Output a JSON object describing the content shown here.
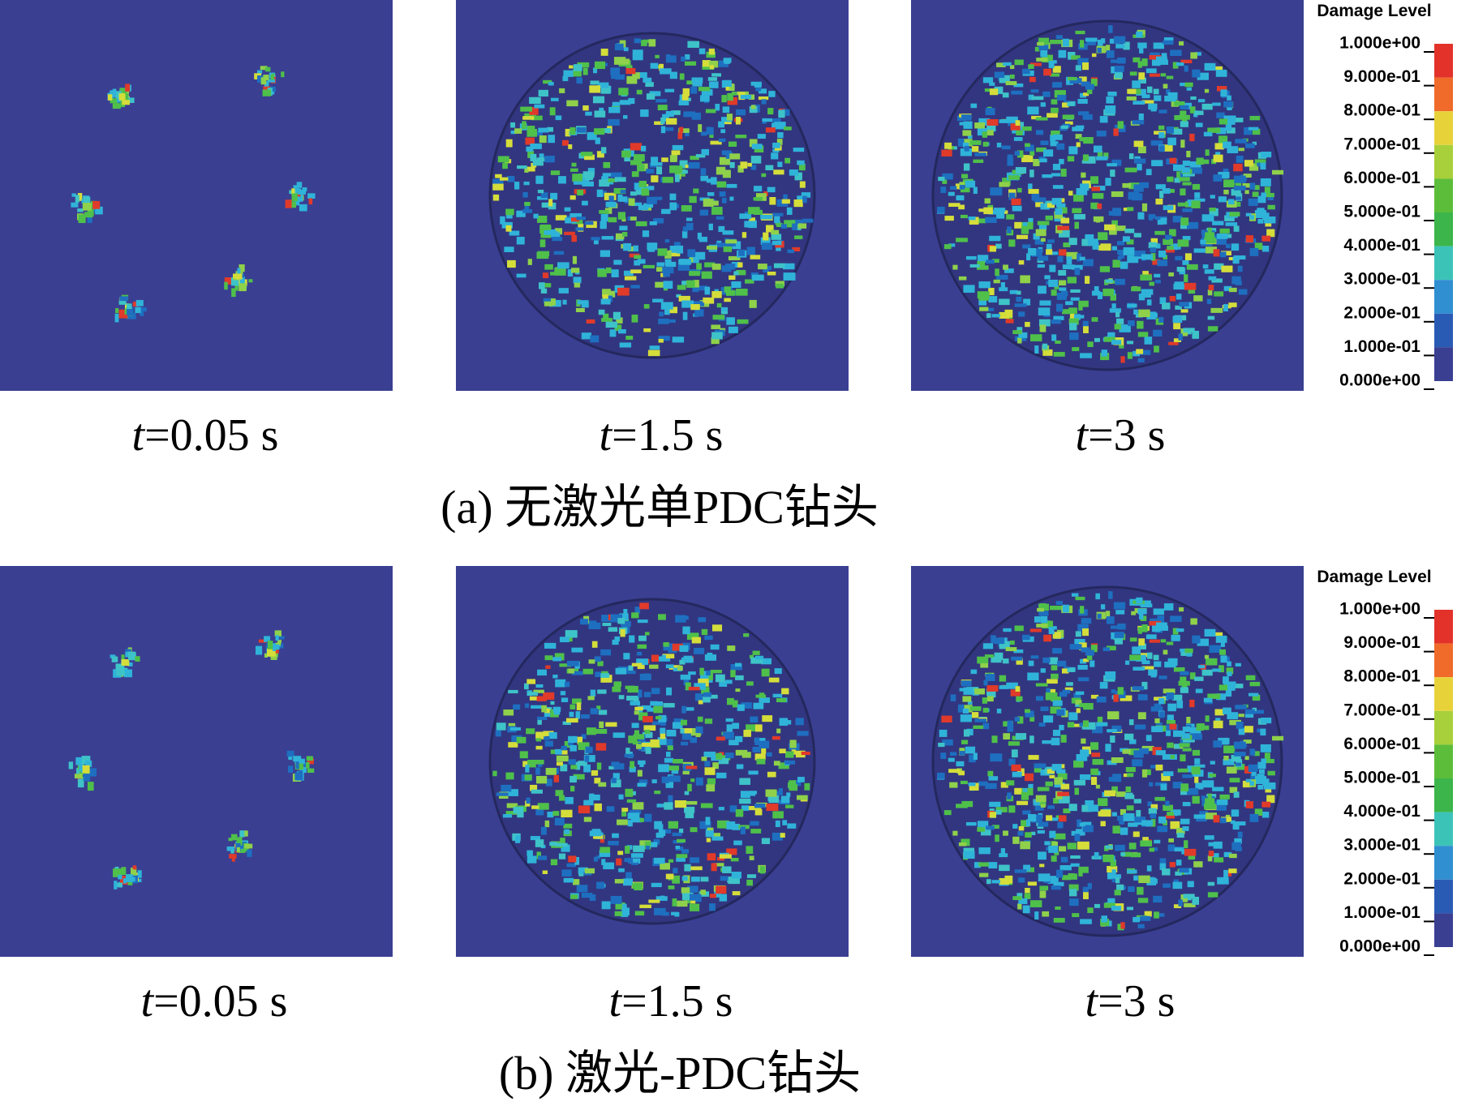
{
  "rows": [
    {
      "panels": [
        {
          "label": {
            "var": "t",
            "value": "=0.05 s"
          }
        },
        {
          "label": {
            "var": "t",
            "value": "=1.5 s"
          }
        },
        {
          "label": {
            "var": "t",
            "value": "=3 s"
          }
        }
      ],
      "caption": "(a)  无激光单PDC钻头",
      "legend": {
        "title": "Damage Level",
        "labels": [
          "1.000e+00",
          "9.000e-01",
          "8.000e-01",
          "7.000e-01",
          "6.000e-01",
          "5.000e-01",
          "4.000e-01",
          "3.000e-01",
          "2.000e-01",
          "1.000e-01",
          "0.000e+00"
        ]
      }
    },
    {
      "panels": [
        {
          "label": {
            "var": "t",
            "value": "=0.05 s"
          }
        },
        {
          "label": {
            "var": "t",
            "value": "=1.5 s"
          }
        },
        {
          "label": {
            "var": "t",
            "value": "=3 s"
          }
        }
      ],
      "caption": "(b)  激光-PDC钻头",
      "legend": {
        "title": "Damage Level",
        "labels": [
          "1.000e+00",
          "9.000e-01",
          "8.000e-01",
          "7.000e-01",
          "6.000e-01",
          "5.000e-01",
          "4.000e-01",
          "3.000e-01",
          "2.000e-01",
          "1.000e-01",
          "0.000e+00"
        ]
      }
    }
  ]
}
